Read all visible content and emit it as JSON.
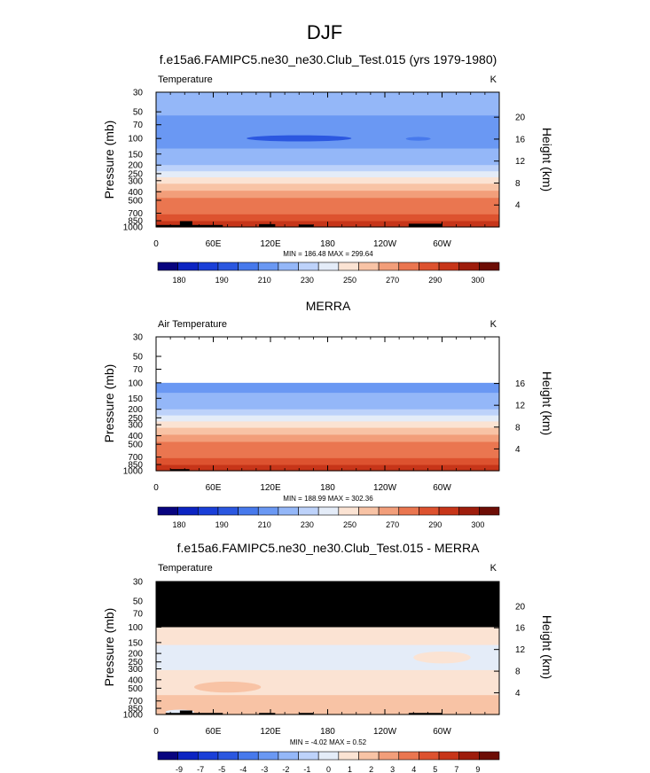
{
  "figure": {
    "title": "DJF"
  },
  "colors": {
    "absolute": [
      "#08047f",
      "#0c24c2",
      "#1a3fd8",
      "#2b57e0",
      "#4779ec",
      "#6a98f3",
      "#94b7f8",
      "#bdd2fa",
      "#e4ecf8",
      "#fbe3d3",
      "#f8c3a5",
      "#f29e7a",
      "#ea7650",
      "#dd522f",
      "#c73519",
      "#9e1d0c",
      "#6d0d05"
    ],
    "difference": [
      "#08047f",
      "#0c24c2",
      "#1a3fd8",
      "#2b57e0",
      "#4779ec",
      "#6a98f3",
      "#94b7f8",
      "#bdd2fa",
      "#e4ecf8",
      "#fbe3d3",
      "#f8c3a5",
      "#f29e7a",
      "#ea7650",
      "#dd522f",
      "#c73519",
      "#9e1d0c",
      "#6d0d05"
    ],
    "missing": "#000000",
    "land": "#000000"
  },
  "chart_data": [
    {
      "type": "heatmap",
      "title": "f.e15a6.FAMIPC5.ne30_ne30.Club_Test.015 (yrs 1979-1980)",
      "left_label": "Temperature",
      "units": "K",
      "ylabel": "Pressure (mb)",
      "ylabel_right": "Height (km)",
      "x_ticks": [
        "0",
        "60E",
        "120E",
        "180",
        "120W",
        "60W"
      ],
      "xlim": [
        0,
        360
      ],
      "y_ticks": [
        "30",
        "50",
        "70",
        "100",
        "150",
        "200",
        "250",
        "300",
        "400",
        "500",
        "700",
        "850",
        "1000"
      ],
      "ylim": [
        30,
        1000
      ],
      "height_ticks": [
        "20",
        "16",
        "12",
        "8",
        "4"
      ],
      "stats": "MIN = 186.48  MAX = 299.64",
      "colorbar_labels": [
        "180",
        "190",
        "210",
        "230",
        "250",
        "270",
        "290",
        "300"
      ],
      "colorbar_levels": [
        175,
        180,
        185,
        190,
        200,
        210,
        220,
        230,
        240,
        250,
        260,
        270,
        280,
        290,
        295,
        300
      ],
      "bands": [
        {
          "p_top": 30,
          "p_bot": 55,
          "value": 213
        },
        {
          "p_top": 55,
          "p_bot": 130,
          "value": 205
        },
        {
          "p_top": 130,
          "p_bot": 165,
          "value": 212
        },
        {
          "p_top": 165,
          "p_bot": 200,
          "value": 218
        },
        {
          "p_top": 200,
          "p_bot": 235,
          "value": 225
        },
        {
          "p_top": 235,
          "p_bot": 275,
          "value": 235
        },
        {
          "p_top": 275,
          "p_bot": 325,
          "value": 245
        },
        {
          "p_top": 325,
          "p_bot": 390,
          "value": 255
        },
        {
          "p_top": 390,
          "p_bot": 470,
          "value": 263
        },
        {
          "p_top": 470,
          "p_bot": 580,
          "value": 272
        },
        {
          "p_top": 580,
          "p_bot": 720,
          "value": 279
        },
        {
          "p_top": 720,
          "p_bot": 860,
          "value": 285
        },
        {
          "p_top": 860,
          "p_bot": 1000,
          "value": 292
        }
      ],
      "features": [
        {
          "lon_min": 95,
          "lon_max": 205,
          "p_top": 92,
          "p_bot": 108,
          "value": 186.48
        },
        {
          "lon_min": 262,
          "lon_max": 288,
          "p_top": 96,
          "p_bot": 106,
          "value": 192
        }
      ],
      "land": [
        {
          "lon_min": 0,
          "lon_max": 70,
          "p_top": 950
        },
        {
          "lon_min": 25,
          "lon_max": 38,
          "p_top": 860
        },
        {
          "lon_min": 108,
          "lon_max": 125,
          "p_top": 930
        },
        {
          "lon_min": 150,
          "lon_max": 165,
          "p_top": 940
        },
        {
          "lon_min": 265,
          "lon_max": 300,
          "p_top": 920
        }
      ]
    },
    {
      "type": "heatmap",
      "title": "MERRA",
      "left_label": "Air Temperature",
      "units": "K",
      "ylabel": "Pressure (mb)",
      "ylabel_right": "Height (km)",
      "x_ticks": [
        "0",
        "60E",
        "120E",
        "180",
        "120W",
        "60W"
      ],
      "xlim": [
        0,
        360
      ],
      "y_ticks": [
        "30",
        "50",
        "70",
        "100",
        "150",
        "200",
        "250",
        "300",
        "400",
        "500",
        "700",
        "850",
        "1000"
      ],
      "ylim": [
        30,
        1000
      ],
      "height_ticks": [
        "16",
        "12",
        "8",
        "4"
      ],
      "stats": "MIN = 188.99  MAX = 302.36",
      "colorbar_labels": [
        "180",
        "190",
        "210",
        "230",
        "250",
        "270",
        "290",
        "300"
      ],
      "colorbar_levels": [
        175,
        180,
        185,
        190,
        200,
        210,
        220,
        230,
        240,
        250,
        260,
        270,
        280,
        290,
        295,
        300
      ],
      "data_top": 100,
      "bands": [
        {
          "p_top": 100,
          "p_bot": 130,
          "value": 205
        },
        {
          "p_top": 130,
          "p_bot": 165,
          "value": 212
        },
        {
          "p_top": 165,
          "p_bot": 200,
          "value": 218
        },
        {
          "p_top": 200,
          "p_bot": 235,
          "value": 225
        },
        {
          "p_top": 235,
          "p_bot": 275,
          "value": 235
        },
        {
          "p_top": 275,
          "p_bot": 325,
          "value": 245
        },
        {
          "p_top": 325,
          "p_bot": 390,
          "value": 255
        },
        {
          "p_top": 390,
          "p_bot": 470,
          "value": 263
        },
        {
          "p_top": 470,
          "p_bot": 580,
          "value": 272
        },
        {
          "p_top": 580,
          "p_bot": 720,
          "value": 279
        },
        {
          "p_top": 720,
          "p_bot": 860,
          "value": 285
        },
        {
          "p_top": 860,
          "p_bot": 1000,
          "value": 293
        }
      ],
      "features": [],
      "land": [
        {
          "lon_min": 15,
          "lon_max": 35,
          "p_top": 960
        }
      ]
    },
    {
      "type": "heatmap",
      "title": "f.e15a6.FAMIPC5.ne30_ne30.Club_Test.015 - MERRA",
      "left_label": "Temperature",
      "units": "K",
      "ylabel": "Pressure (mb)",
      "ylabel_right": "Height (km)",
      "x_ticks": [
        "0",
        "60E",
        "120E",
        "180",
        "120W",
        "60W"
      ],
      "xlim": [
        0,
        360
      ],
      "y_ticks": [
        "30",
        "50",
        "70",
        "100",
        "150",
        "200",
        "250",
        "300",
        "400",
        "500",
        "700",
        "850",
        "1000"
      ],
      "ylim": [
        30,
        1000
      ],
      "height_ticks": [
        "20",
        "16",
        "12",
        "8",
        "4"
      ],
      "stats": "MIN =  -4.02  MAX =   0.52",
      "colorbar_labels": [
        "-9",
        "-7",
        "-5",
        "-4",
        "-3",
        "-2",
        "-1",
        "0",
        "1",
        "2",
        "3",
        "4",
        "5",
        "7",
        "9"
      ],
      "colorbar_levels": [
        -10,
        -9,
        -8,
        -7,
        -6,
        -5,
        -4,
        -3,
        -2,
        -1,
        0,
        1,
        2,
        3,
        4,
        5,
        7,
        9
      ],
      "missing_above": 100,
      "bands": [
        {
          "p_top": 100,
          "p_bot": 160,
          "value": -1.5
        },
        {
          "p_top": 160,
          "p_bot": 310,
          "value": -2.5
        },
        {
          "p_top": 310,
          "p_bot": 600,
          "value": -1.5
        },
        {
          "p_top": 600,
          "p_bot": 1000,
          "value": -0.5
        }
      ],
      "features": [
        {
          "lon_min": 40,
          "lon_max": 110,
          "p_top": 420,
          "p_bot": 560,
          "value": -0.5
        },
        {
          "lon_min": 10,
          "lon_max": 40,
          "p_top": 880,
          "p_bot": 990,
          "value": -2.5
        },
        {
          "lon_min": 270,
          "lon_max": 330,
          "p_top": 190,
          "p_bot": 260,
          "value": -1.5
        }
      ],
      "land": [
        {
          "lon_min": 10,
          "lon_max": 70,
          "p_top": 960
        },
        {
          "lon_min": 25,
          "lon_max": 38,
          "p_top": 900
        },
        {
          "lon_min": 108,
          "lon_max": 125,
          "p_top": 960
        },
        {
          "lon_min": 150,
          "lon_max": 165,
          "p_top": 960
        },
        {
          "lon_min": 265,
          "lon_max": 300,
          "p_top": 960
        }
      ]
    }
  ]
}
